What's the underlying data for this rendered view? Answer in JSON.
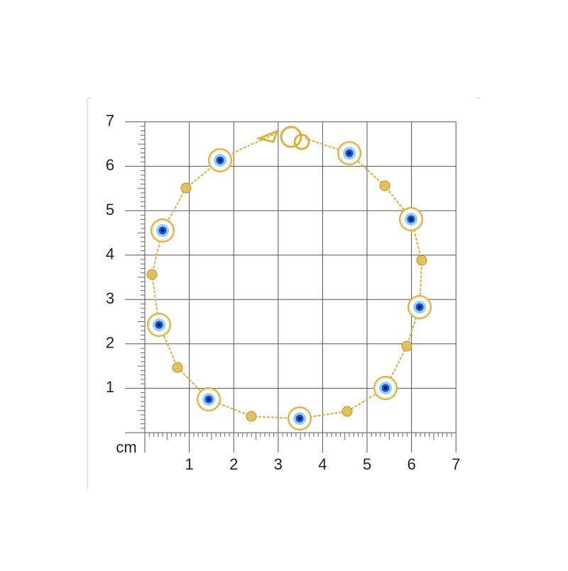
{
  "y_labels": [
    7,
    6,
    5,
    4,
    3,
    2,
    1
  ],
  "x_labels": [
    1,
    2,
    3,
    4,
    5,
    6,
    7
  ],
  "unit": "cm"
}
